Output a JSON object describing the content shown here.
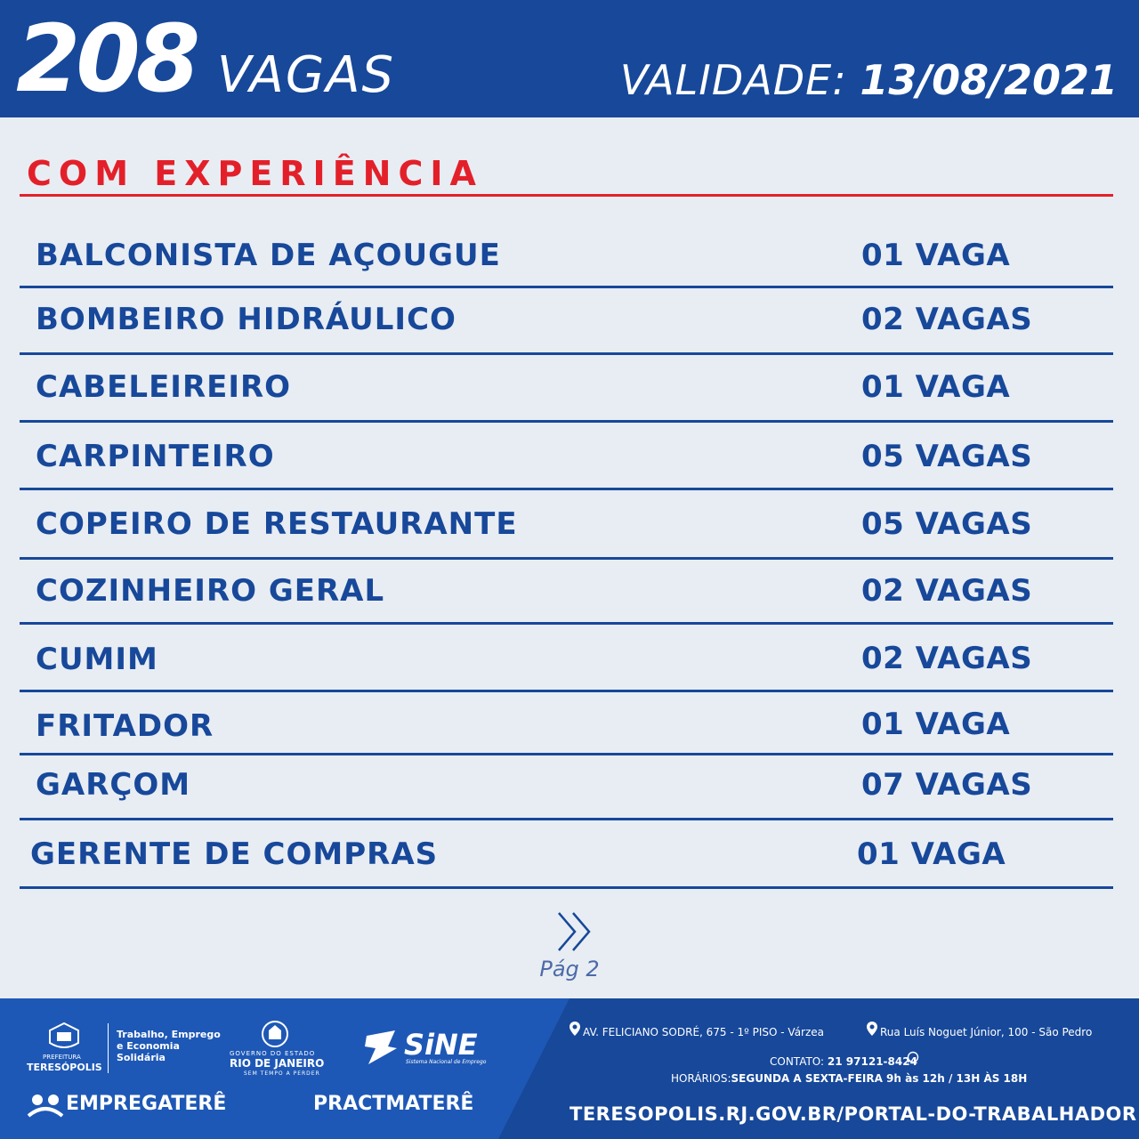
{
  "header": {
    "count": "208",
    "count_label": "VAGAS",
    "validity_label": "VALIDADE:",
    "validity_date": "13/08/2021"
  },
  "section": {
    "title": "COM EXPERIÊNCIA"
  },
  "jobs": [
    {
      "name": "BALCONISTA DE AÇOUGUE",
      "count": "01 VAGA"
    },
    {
      "name": "BOMBEIRO HIDRÁULICO",
      "count": "02 VAGAS"
    },
    {
      "name": "CABELEIREIRO",
      "count": "01 VAGA"
    },
    {
      "name": "CARPINTEIRO",
      "count": "05 VAGAS"
    },
    {
      "name": "COPEIRO DE RESTAURANTE",
      "count": "05 VAGAS"
    },
    {
      "name": "COZINHEIRO GERAL",
      "count": "02 VAGAS"
    },
    {
      "name": "CUMIM",
      "count": "02 VAGAS"
    },
    {
      "name": "FRITADOR",
      "count": "01 VAGA"
    },
    {
      "name": "GARÇOM",
      "count": "07 VAGAS"
    },
    {
      "name": "GERENTE DE COMPRAS",
      "count": "01 VAGA"
    }
  ],
  "pagination": {
    "label": "Pág 2",
    "icon": "double-chevron-right-icon"
  },
  "footer": {
    "prefeitura_label": "PREFEITURA",
    "prefeitura_city": "TERESÓPOLIS",
    "secretaria": [
      "Trabalho, Emprego",
      "e Economia",
      "Solidária"
    ],
    "governo_label": "GOVERNO DO ESTADO",
    "governo_state": "RIO DE JANEIRO",
    "governo_slogan": "SEM TEMPO A PERDER",
    "sine_name": "SiNE",
    "sine_sub": "Sistema Nacional de Emprego",
    "emprega": "EMPREGATERÊ",
    "pract": "PRACTMATERÊ",
    "address_1": "AV. FELICIANO SODRÉ, 675 - 1º PISO - Várzea",
    "address_2": "Rua Luís Noguet Júnior, 100 - São Pedro",
    "contact_label": "CONTATO:",
    "contact_phone": "21 97121-8424",
    "hours_label": "HORÁRIOS:",
    "hours_value": "SEGUNDA A SEXTA-FEIRA  9h às 12h / 13H ÀS 18H",
    "url": "TERESOPOLIS.RJ.GOV.BR/PORTAL-DO-TRABALHADOR"
  },
  "colors": {
    "brand_blue": "#17489a",
    "accent_red": "#e3202a",
    "background": "#e8edf3"
  }
}
